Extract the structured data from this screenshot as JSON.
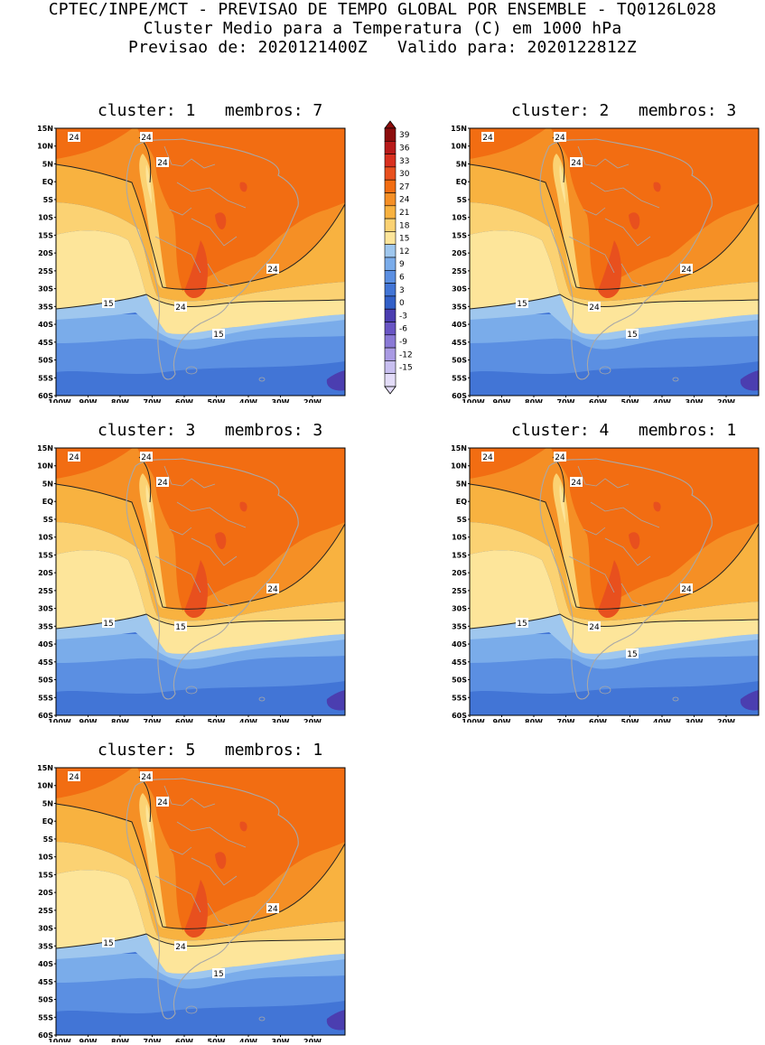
{
  "header": {
    "line1": "CPTEC/INPE/MCT - PREVISAO DE TEMPO GLOBAL POR ENSEMBLE - TQ0126L028",
    "line2": "Cluster Medio para a Temperatura (C) em 1000 hPa",
    "line3": "Previsao de: 2020121400Z   Valido para: 2020122812Z"
  },
  "axes": {
    "lat_labels": [
      "15N",
      "10N",
      "5N",
      "EQ",
      "5S",
      "10S",
      "15S",
      "20S",
      "25S",
      "30S",
      "35S",
      "40S",
      "45S",
      "50S",
      "55S",
      "60S"
    ],
    "lon_labels": [
      "100W",
      "90W",
      "80W",
      "70W",
      "60W",
      "50W",
      "40W",
      "30W",
      "20W"
    ]
  },
  "colorbar": {
    "labels": [
      "39",
      "36",
      "33",
      "30",
      "27",
      "24",
      "21",
      "18",
      "15",
      "12",
      "9",
      "6",
      "3",
      "0",
      "-3",
      "-6",
      "-9",
      "-12",
      "-15"
    ],
    "colors": [
      "#8c0d0d",
      "#b81a1a",
      "#d9301f",
      "#e8501e",
      "#f26d12",
      "#f58f25",
      "#f8b240",
      "#fbd273",
      "#fde59a",
      "#9fc7ee",
      "#7aacea",
      "#5b8fe2",
      "#4275d6",
      "#3360c8",
      "#4b3eb0",
      "#6955c4",
      "#8a79d6",
      "#a99ae3",
      "#c8bff0",
      "#e3dcf8"
    ]
  },
  "panels": [
    {
      "title": "cluster: 1   membros: 7",
      "labels": [
        "24",
        "24",
        "24",
        "24",
        "24",
        "15",
        "15"
      ]
    },
    {
      "title": "cluster: 2   membros: 3",
      "labels": [
        "24",
        "24",
        "24",
        "24",
        "24",
        "15",
        "15"
      ]
    },
    {
      "title": "cluster: 3   membros: 3",
      "labels": [
        "24",
        "24",
        "24",
        "24",
        "15",
        "15"
      ]
    },
    {
      "title": "cluster: 4   membros: 1",
      "labels": [
        "24",
        "24",
        "24",
        "24",
        "24",
        "15",
        "15"
      ]
    },
    {
      "title": "cluster: 5   membros: 1",
      "labels": [
        "24",
        "24",
        "24",
        "24",
        "24",
        "15",
        "15"
      ]
    }
  ]
}
